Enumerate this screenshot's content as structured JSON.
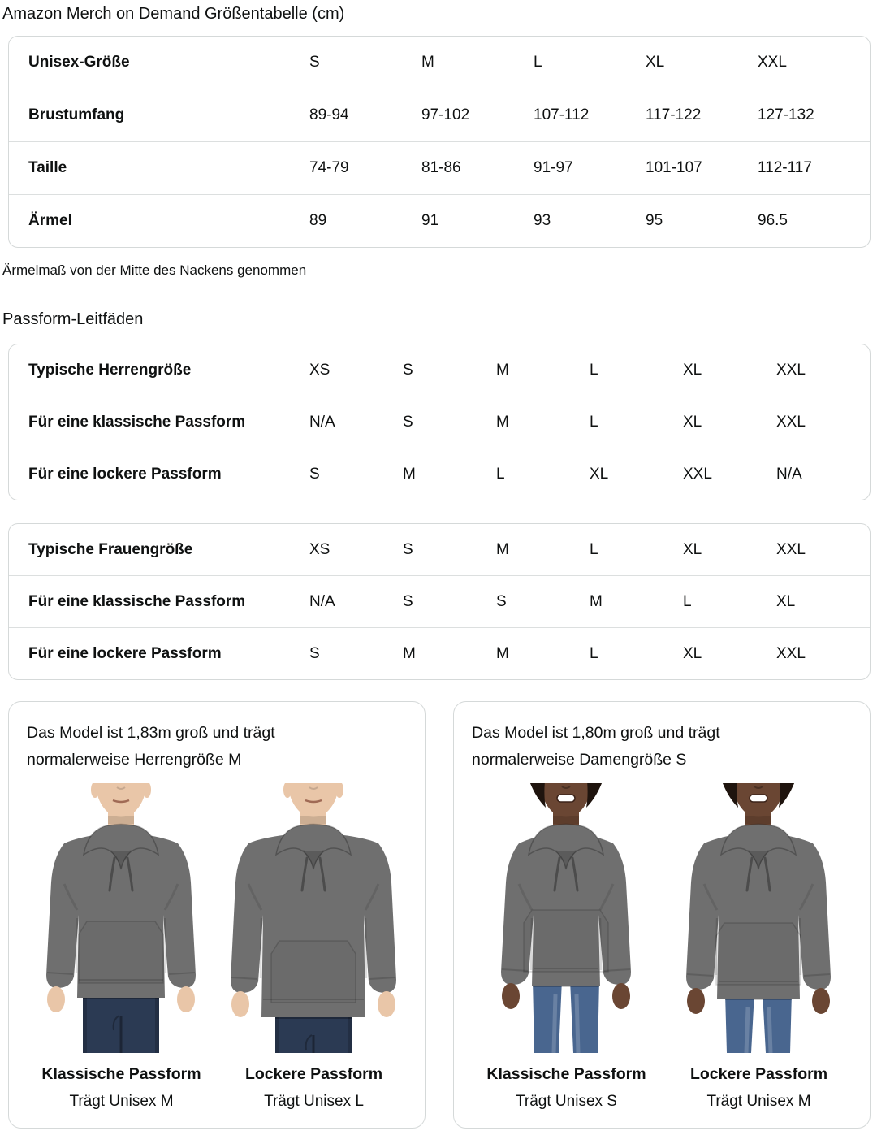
{
  "title": "Amazon Merch on Demand Größentabelle (cm)",
  "note": "Ärmelmaß von der Mitte des Nackens genommen",
  "fit_heading": "Passform-Leitfäden",
  "colors": {
    "text": "#0f1111",
    "table_border": "#d5d9d9",
    "row_divider": "#dcdfdf",
    "hoodie_gray": "#6f6f6f",
    "hoodie_shadow": "#575757",
    "jeans_men": "#2b3a53",
    "jeans_women": "#49668f",
    "skin_man": "#e9c6a8",
    "skin_woman": "#6a4633",
    "hair_woman": "#1f140e",
    "mouth_man": "#a06a55",
    "smile_outline": "#3c241a"
  },
  "size_table": {
    "rows": [
      [
        "Unisex-Größe",
        "S",
        "M",
        "L",
        "XL",
        "XXL"
      ],
      [
        "Brustumfang",
        "89-94",
        "97-102",
        "107-112",
        "117-122",
        "127-132"
      ],
      [
        "Taille",
        "74-79",
        "81-86",
        "91-97",
        "101-107",
        "112-117"
      ],
      [
        "Ärmel",
        "89",
        "91",
        "93",
        "95",
        "96.5"
      ]
    ]
  },
  "mens_table": {
    "rows": [
      [
        "Typische Herrengröße",
        "XS",
        "S",
        "M",
        "L",
        "XL",
        "XXL"
      ],
      [
        "Für eine klassische Passform",
        "N/A",
        "S",
        "M",
        "L",
        "XL",
        "XXL"
      ],
      [
        "Für eine lockere Passform",
        "S",
        "M",
        "L",
        "XL",
        "XXL",
        "N/A"
      ]
    ]
  },
  "womens_table": {
    "rows": [
      [
        "Typische Frauengröße",
        "XS",
        "S",
        "M",
        "L",
        "XL",
        "XXL"
      ],
      [
        "Für eine klassische Passform",
        "N/A",
        "S",
        "S",
        "M",
        "L",
        "XL"
      ],
      [
        "Für eine lockere Passform",
        "S",
        "M",
        "M",
        "L",
        "XL",
        "XXL"
      ]
    ]
  },
  "cards": [
    {
      "description": "Das Model ist 1,83m groß und trägt normalerweise Herrengröße M",
      "figures": [
        {
          "fit_label": "Klassische Passform",
          "size_label": "Trägt Unisex M"
        },
        {
          "fit_label": "Lockere Passform",
          "size_label": "Trägt Unisex L"
        }
      ]
    },
    {
      "description": "Das Model ist 1,80m groß und trägt normalerweise Damengröße S",
      "figures": [
        {
          "fit_label": "Klassische Passform",
          "size_label": "Trägt Unisex S"
        },
        {
          "fit_label": "Lockere Passform",
          "size_label": "Trägt Unisex M"
        }
      ]
    }
  ]
}
